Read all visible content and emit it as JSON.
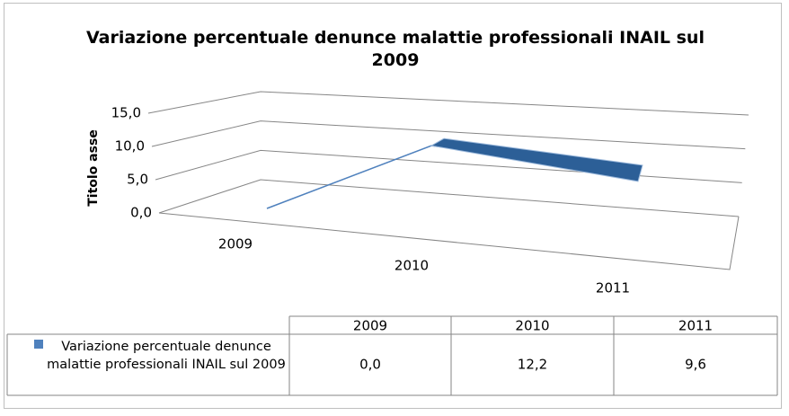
{
  "chart_data": {
    "type": "line3d",
    "title": "Variazione percentuale denunce malattie professionali INAIL sul 2009",
    "y_axis_label": "Titolo asse",
    "categories": [
      "2009",
      "2010",
      "2011"
    ],
    "series": [
      {
        "name": "Variazione percentuale denunce malattie professionali INAIL sul 2009",
        "color": "#4f81bd",
        "values": [
          0.0,
          12.2,
          9.6
        ],
        "value_labels": [
          "0,0",
          "12,2",
          "9,6"
        ]
      }
    ],
    "ylim": [
      0,
      15
    ],
    "yticks": [
      {
        "value": 0,
        "label": "0,0"
      },
      {
        "value": 5,
        "label": "5,0"
      },
      {
        "value": 10,
        "label": "10,0"
      },
      {
        "value": 15,
        "label": "15,0"
      }
    ],
    "grid": true,
    "data_table": true
  }
}
